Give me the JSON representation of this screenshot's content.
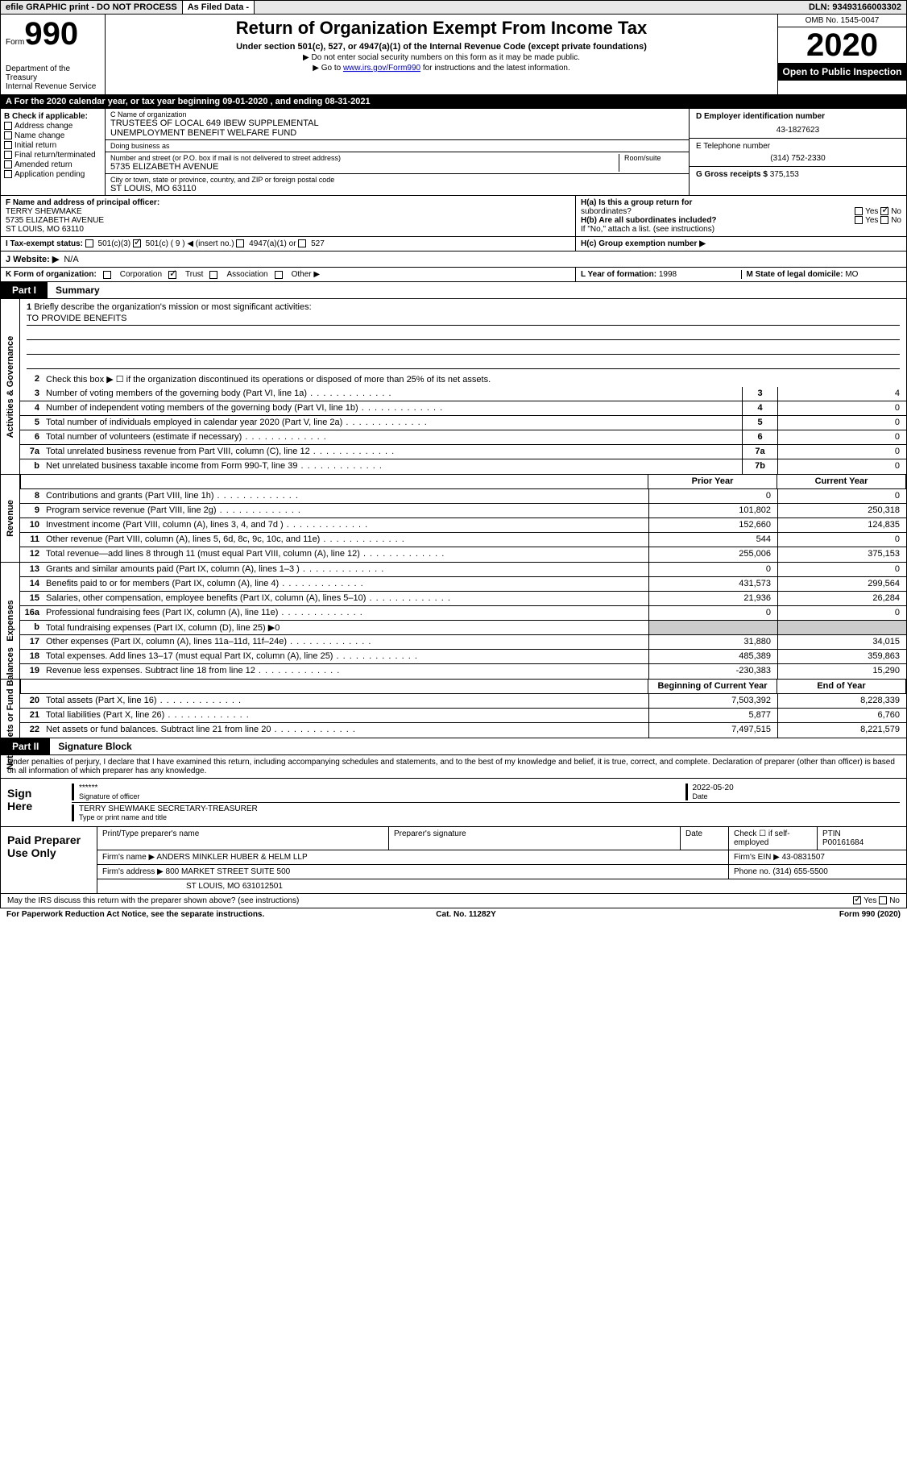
{
  "topbar": {
    "efile": "efile GRAPHIC print - DO NOT PROCESS",
    "asfiled": "As Filed Data -",
    "dln_label": "DLN:",
    "dln": "93493166003302"
  },
  "header": {
    "form_prefix": "Form",
    "form_no": "990",
    "dept": "Department of the Treasury",
    "irs": "Internal Revenue Service",
    "title": "Return of Organization Exempt From Income Tax",
    "sub": "Under section 501(c), 527, or 4947(a)(1) of the Internal Revenue Code (except private foundations)",
    "note1": "▶ Do not enter social security numbers on this form as it may be made public.",
    "note2_pre": "▶ Go to ",
    "note2_link": "www.irs.gov/Form990",
    "note2_post": " for instructions and the latest information.",
    "omb": "OMB No. 1545-0047",
    "year": "2020",
    "open": "Open to Public Inspection"
  },
  "A": {
    "text": "A  For the 2020 calendar year, or tax year beginning 09-01-2020   , and ending 08-31-2021"
  },
  "B": {
    "head": "B Check if applicable:",
    "opts": [
      "Address change",
      "Name change",
      "Initial return",
      "Final return/terminated",
      "Amended return",
      "Application pending"
    ]
  },
  "C": {
    "name_label": "C Name of organization",
    "name1": "TRUSTEES OF LOCAL 649 IBEW SUPPLEMENTAL",
    "name2": "UNEMPLOYMENT BENEFIT WELFARE FUND",
    "dba_label": "Doing business as",
    "dba": "",
    "street_label": "Number and street (or P.O. box if mail is not delivered to street address)",
    "room_label": "Room/suite",
    "street": "5735 ELIZABETH AVENUE",
    "city_label": "City or town, state or province, country, and ZIP or foreign postal code",
    "city": "ST LOUIS, MO  63110"
  },
  "D": {
    "label": "D Employer identification number",
    "val": "43-1827623"
  },
  "E": {
    "label": "E Telephone number",
    "val": "(314) 752-2330"
  },
  "G": {
    "label": "G Gross receipts $",
    "val": "375,153"
  },
  "F": {
    "label": "F  Name and address of principal officer:",
    "name": "TERRY SHEWMAKE",
    "addr1": "5735 ELIZABETH AVENUE",
    "addr2": "ST LOUIS, MO  63110"
  },
  "H": {
    "a_label": "H(a)  Is this a group return for",
    "a_sub": "subordinates?",
    "b_label": "H(b)  Are all subordinates included?",
    "b_note": "If \"No,\" attach a list. (see instructions)",
    "c_label": "H(c)  Group exemption number ▶",
    "yes": "Yes",
    "no": "No"
  },
  "I": {
    "label": "I   Tax-exempt status:",
    "c3": "501(c)(3)",
    "c": "501(c) ( 9 ) ◀ (insert no.)",
    "a1": "4947(a)(1) or",
    "five27": "527"
  },
  "J": {
    "label": "J   Website: ▶",
    "val": "N/A"
  },
  "K": {
    "label": "K Form of organization:",
    "opts": [
      "Corporation",
      "Trust",
      "Association",
      "Other ▶"
    ],
    "checked": "Trust"
  },
  "L": {
    "label": "L Year of formation:",
    "val": "1998"
  },
  "M": {
    "label": "M State of legal domicile:",
    "val": "MO"
  },
  "part1": {
    "tab": "Part I",
    "title": "Summary"
  },
  "brief": {
    "num": "1",
    "label": "Briefly describe the organization's mission or most significant activities:",
    "val": "TO PROVIDE BENEFITS"
  },
  "actgov": {
    "vlabel": "Activities & Governance",
    "r2": "Check this box ▶ ☐ if the organization discontinued its operations or disposed of more than 25% of its net assets.",
    "rows": [
      {
        "n": "3",
        "d": "Number of voting members of the governing body (Part VI, line 1a)",
        "k": "3",
        "v": "4"
      },
      {
        "n": "4",
        "d": "Number of independent voting members of the governing body (Part VI, line 1b)",
        "k": "4",
        "v": "0"
      },
      {
        "n": "5",
        "d": "Total number of individuals employed in calendar year 2020 (Part V, line 2a)",
        "k": "5",
        "v": "0"
      },
      {
        "n": "6",
        "d": "Total number of volunteers (estimate if necessary)",
        "k": "6",
        "v": "0"
      },
      {
        "n": "7a",
        "d": "Total unrelated business revenue from Part VIII, column (C), line 12",
        "k": "7a",
        "v": "0"
      },
      {
        "n": "b",
        "d": "Net unrelated business taxable income from Form 990-T, line 39",
        "k": "7b",
        "v": "0"
      }
    ]
  },
  "rev": {
    "vlabel": "Revenue",
    "prior": "Prior Year",
    "cur": "Current Year",
    "rows": [
      {
        "n": "8",
        "d": "Contributions and grants (Part VIII, line 1h)",
        "p": "0",
        "c": "0"
      },
      {
        "n": "9",
        "d": "Program service revenue (Part VIII, line 2g)",
        "p": "101,802",
        "c": "250,318"
      },
      {
        "n": "10",
        "d": "Investment income (Part VIII, column (A), lines 3, 4, and 7d )",
        "p": "152,660",
        "c": "124,835"
      },
      {
        "n": "11",
        "d": "Other revenue (Part VIII, column (A), lines 5, 6d, 8c, 9c, 10c, and 11e)",
        "p": "544",
        "c": "0"
      },
      {
        "n": "12",
        "d": "Total revenue—add lines 8 through 11 (must equal Part VIII, column (A), line 12)",
        "p": "255,006",
        "c": "375,153"
      }
    ]
  },
  "exp": {
    "vlabel": "Expenses",
    "rows": [
      {
        "n": "13",
        "d": "Grants and similar amounts paid (Part IX, column (A), lines 1–3 )",
        "p": "0",
        "c": "0"
      },
      {
        "n": "14",
        "d": "Benefits paid to or for members (Part IX, column (A), line 4)",
        "p": "431,573",
        "c": "299,564"
      },
      {
        "n": "15",
        "d": "Salaries, other compensation, employee benefits (Part IX, column (A), lines 5–10)",
        "p": "21,936",
        "c": "26,284"
      },
      {
        "n": "16a",
        "d": "Professional fundraising fees (Part IX, column (A), line 11e)",
        "p": "0",
        "c": "0"
      },
      {
        "n": "b",
        "d": "Total fundraising expenses (Part IX, column (D), line 25) ▶0",
        "p": "",
        "c": ""
      },
      {
        "n": "17",
        "d": "Other expenses (Part IX, column (A), lines 11a–11d, 11f–24e)",
        "p": "31,880",
        "c": "34,015"
      },
      {
        "n": "18",
        "d": "Total expenses. Add lines 13–17 (must equal Part IX, column (A), line 25)",
        "p": "485,389",
        "c": "359,863"
      },
      {
        "n": "19",
        "d": "Revenue less expenses. Subtract line 18 from line 12",
        "p": "-230,383",
        "c": "15,290"
      }
    ]
  },
  "net": {
    "vlabel": "Net Assets or Fund Balances",
    "prior": "Beginning of Current Year",
    "cur": "End of Year",
    "rows": [
      {
        "n": "20",
        "d": "Total assets (Part X, line 16)",
        "p": "7,503,392",
        "c": "8,228,339"
      },
      {
        "n": "21",
        "d": "Total liabilities (Part X, line 26)",
        "p": "5,877",
        "c": "6,760"
      },
      {
        "n": "22",
        "d": "Net assets or fund balances. Subtract line 21 from line 20",
        "p": "7,497,515",
        "c": "8,221,579"
      }
    ]
  },
  "part2": {
    "tab": "Part II",
    "title": "Signature Block"
  },
  "perjury": "Under penalties of perjury, I declare that I have examined this return, including accompanying schedules and statements, and to the best of my knowledge and belief, it is true, correct, and complete. Declaration of preparer (other than officer) is based on all information of which preparer has any knowledge.",
  "sign": {
    "head": "Sign Here",
    "stars": "******",
    "sig_label": "Signature of officer",
    "date": "2022-05-20",
    "date_label": "Date",
    "name": "TERRY SHEWMAKE SECRETARY-TREASURER",
    "name_label": "Type or print name and title"
  },
  "prep": {
    "head": "Paid Preparer Use Only",
    "r1": {
      "a": "Print/Type preparer's name",
      "b": "Preparer's signature",
      "c": "Date",
      "d_label": "Check ☐ if self-employed",
      "e_label": "PTIN",
      "e": "P00161684"
    },
    "r2": {
      "a": "Firm's name   ▶ ANDERS MINKLER HUBER & HELM LLP",
      "b": "Firm's EIN ▶ 43-0831507"
    },
    "r3": {
      "a": "Firm's address ▶ 800 MARKET STREET SUITE 500",
      "b": "Phone no. (314) 655-5500"
    },
    "r4": "ST LOUIS, MO  631012501"
  },
  "foot": {
    "q": "May the IRS discuss this return with the preparer shown above? (see instructions)",
    "yes": "Yes",
    "no": "No",
    "pra": "For Paperwork Reduction Act Notice, see the separate instructions.",
    "cat": "Cat. No. 11282Y",
    "form": "Form 990 (2020)"
  }
}
